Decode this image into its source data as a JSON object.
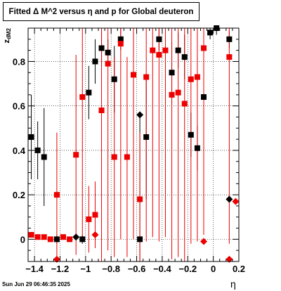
{
  "chart_data": {
    "type": "scatter",
    "title": "Fitted Δ M^2 versus η and p for Global deuteron",
    "xlabel": "η",
    "ylabel": "z_{dM2}",
    "xlim": [
      -1.45,
      0.2
    ],
    "ylim": [
      -0.1,
      0.95
    ],
    "x_ticks": [
      -1.4,
      -1.2,
      -1,
      -0.8,
      -0.6,
      -0.4,
      -0.2,
      0,
      0.2
    ],
    "x_tick_labels": [
      "−1.4",
      "−1.2",
      "−1",
      "−0.8",
      "−0.6",
      "−0.4",
      "−0.2",
      "0",
      "0.2"
    ],
    "y_ticks": [
      0,
      0.2,
      0.4,
      0.6,
      0.8
    ],
    "y_tick_labels": [
      "0",
      "0.2",
      "0.4",
      "0.6",
      "0.8"
    ],
    "grid": true,
    "series_colors": {
      "black": "#000000",
      "red": "#ee0000"
    },
    "series": [
      {
        "color": "black",
        "marker": "square",
        "points": [
          {
            "x": -1.425,
            "y": 0.46,
            "err": 0.19
          },
          {
            "x": -1.375,
            "y": 0.4,
            "err": 0.13
          },
          {
            "x": -1.325,
            "y": 0.37,
            "err": 0.22
          },
          {
            "x": -1.225,
            "y": 0.0,
            "err": 0.02
          },
          {
            "x": -1.025,
            "y": 0.0,
            "err": 0.02
          },
          {
            "x": -0.975,
            "y": 0.66,
            "err": 0.12
          },
          {
            "x": -0.925,
            "y": 0.8,
            "err": 0.1
          },
          {
            "x": -0.875,
            "y": 0.86,
            "err": 0.08
          },
          {
            "x": -0.825,
            "y": 0.84,
            "err": 0.06
          },
          {
            "x": -0.775,
            "y": 0.72,
            "err": 0.15
          },
          {
            "x": -0.725,
            "y": 0.9,
            "err": 0.05
          },
          {
            "x": -0.575,
            "y": 0.0,
            "err": 0.55
          },
          {
            "x": -0.525,
            "y": 0.46,
            "err": 0.28
          },
          {
            "x": -0.425,
            "y": 0.9,
            "err": 0.05
          },
          {
            "x": -0.325,
            "y": 0.75,
            "err": 0.14
          },
          {
            "x": -0.275,
            "y": 0.85,
            "err": 0.08
          },
          {
            "x": -0.225,
            "y": 0.82,
            "err": 0.1
          },
          {
            "x": -0.175,
            "y": 0.47,
            "err": 0.1
          },
          {
            "x": -0.125,
            "y": 0.41,
            "err": 0.1
          },
          {
            "x": -0.075,
            "y": 0.64,
            "err": 0.16
          },
          {
            "x": -0.025,
            "y": 0.93,
            "err": 0.03
          },
          {
            "x": 0.025,
            "y": 0.95,
            "err": 0.03
          },
          {
            "x": 0.125,
            "y": 0.9,
            "err": 0.04
          }
        ]
      },
      {
        "color": "black",
        "marker": "diamond",
        "points": [
          {
            "x": -1.075,
            "y": 0.01,
            "err": 0.0
          },
          {
            "x": -0.575,
            "y": 0.56,
            "err": 0.0
          },
          {
            "x": 0.125,
            "y": 0.18,
            "err": 0.0
          }
        ]
      },
      {
        "color": "red",
        "marker": "square",
        "points": [
          {
            "x": -1.425,
            "y": 0.02,
            "err": 0.0
          },
          {
            "x": -1.375,
            "y": 0.01,
            "err": 0.0
          },
          {
            "x": -1.325,
            "y": 0.01,
            "err": 0.0
          },
          {
            "x": -1.275,
            "y": 0.0,
            "err": 0.0
          },
          {
            "x": -1.225,
            "y": 0.2,
            "err": 0.28
          },
          {
            "x": -1.175,
            "y": 0.01,
            "err": 0.0
          },
          {
            "x": -1.125,
            "y": 0.0,
            "err": 0.0
          },
          {
            "x": -1.075,
            "y": 0.38,
            "err": 0.45
          },
          {
            "x": -1.025,
            "y": 0.64,
            "err": 0.65
          },
          {
            "x": -0.975,
            "y": 0.09,
            "err": 0.15
          },
          {
            "x": -0.925,
            "y": 0.11,
            "err": 0.15
          },
          {
            "x": -0.875,
            "y": 0.58,
            "err": 0.68
          },
          {
            "x": -0.825,
            "y": 0.79,
            "err": 0.84
          },
          {
            "x": -0.775,
            "y": 0.37,
            "err": 0.45
          },
          {
            "x": -0.725,
            "y": 0.88,
            "err": 0.88
          },
          {
            "x": -0.675,
            "y": 0.37,
            "err": 0.45
          },
          {
            "x": -0.625,
            "y": 0.74,
            "err": 0.74
          },
          {
            "x": -0.575,
            "y": 0.18,
            "err": 0.3
          },
          {
            "x": -0.525,
            "y": 0.73,
            "err": 0.74
          },
          {
            "x": -0.475,
            "y": 0.85,
            "err": 0.84
          },
          {
            "x": -0.425,
            "y": 0.83,
            "err": 0.84
          },
          {
            "x": -0.375,
            "y": 0.85,
            "err": 0.84
          },
          {
            "x": -0.325,
            "y": 0.65,
            "err": 0.74
          },
          {
            "x": -0.275,
            "y": 0.66,
            "err": 0.74
          },
          {
            "x": -0.225,
            "y": 0.61,
            "err": 0.74
          },
          {
            "x": -0.175,
            "y": 0.72,
            "err": 0.74
          },
          {
            "x": -0.125,
            "y": 0.73,
            "err": 0.74
          },
          {
            "x": -0.075,
            "y": 0.86,
            "err": 0.84
          },
          {
            "x": 0.125,
            "y": 0.82,
            "err": 0.84
          }
        ]
      },
      {
        "color": "red",
        "marker": "diamond",
        "points": [
          {
            "x": -1.225,
            "y": -0.09,
            "err": 0.0
          },
          {
            "x": -0.925,
            "y": 0.02,
            "err": 0.0
          },
          {
            "x": -0.075,
            "y": -0.01,
            "err": 0.0
          },
          {
            "x": 0.125,
            "y": -0.09,
            "err": 0.0
          },
          {
            "x": 0.175,
            "y": 0.17,
            "err": 0.0
          }
        ]
      }
    ]
  },
  "timestamp": "Sun Jun 29 06:46:35 2025"
}
